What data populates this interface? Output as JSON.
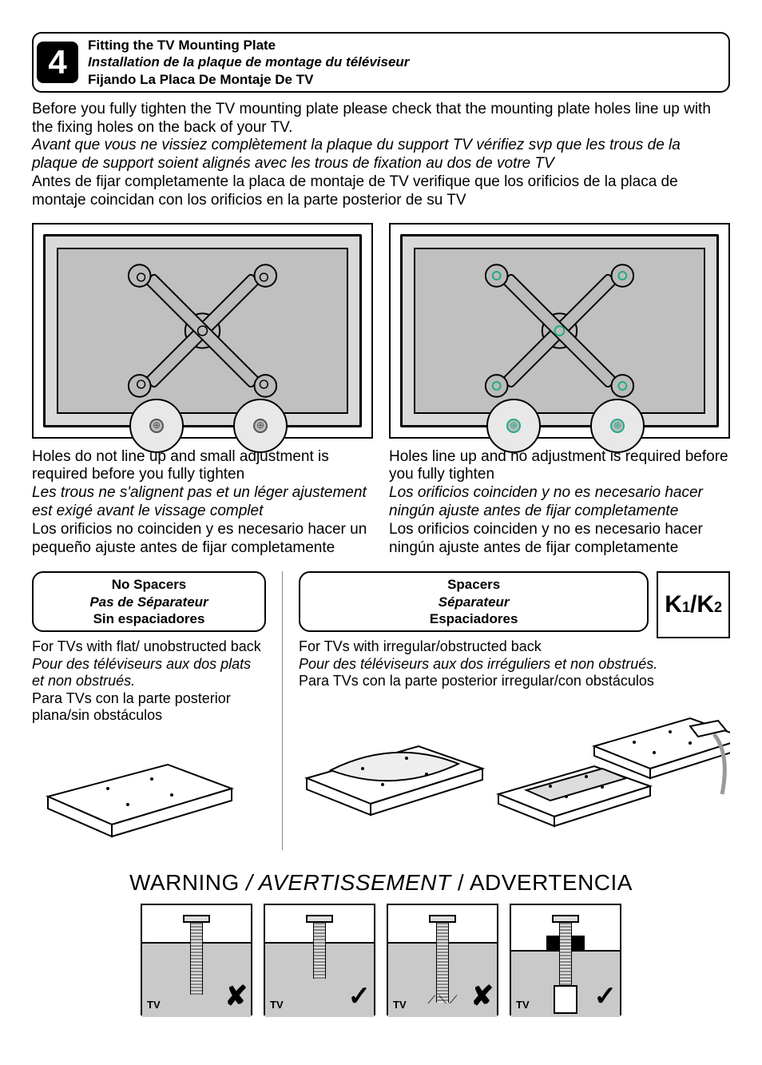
{
  "step": {
    "number": "4",
    "title_en": "Fitting the TV Mounting Plate",
    "title_fr": "Installation de la plaque de montage du téléviseur",
    "title_es": "Fijando La Placa De Montaje De TV"
  },
  "intro": {
    "en": "Before you fully tighten the TV mounting plate please check that the mounting plate holes line up with the fixing holes on the back of your TV.",
    "fr": "Avant que vous ne vissiez complètement la plaque du support TV vérifiez svp que les trous de la plaque de support soient alignés avec les trous de fixation au dos de votre TV",
    "es": "Antes de fijar completamente la placa de montaje de TV verifique que los orificios de la placa de montaje coincidan con los orificios en la parte posterior de su TV"
  },
  "left_caption": {
    "en": "Holes do not line up and small adjustment is required before you fully tighten",
    "fr": "Les trous ne s'alignent pas et un léger ajustement est exigé avant le vissage complet",
    "es": "Los orificios no coinciden y es necesario hacer un pequeño ajuste antes de fijar completamente"
  },
  "right_caption": {
    "en": "Holes line up and no adjustment is required before you fully tighten",
    "fr": "Los orificios coinciden y no es necesario hacer ningún ajuste antes de fijar completamente",
    "es": "Los orificios coinciden y no es necesario hacer ningún ajuste antes de fijar completamente"
  },
  "no_spacers": {
    "title_en": "No Spacers",
    "title_fr": "Pas de Séparateur",
    "title_es": "Sin espaciadores",
    "text_en": "For TVs with flat/ unobstructed back",
    "text_fr": "Pour des téléviseurs aux dos plats et non obstrués.",
    "text_es": "Para TVs con la parte posterior plana/sin obstáculos"
  },
  "spacers": {
    "title_en": "Spacers",
    "title_fr": "Séparateur",
    "title_es": "Espaciadores",
    "label": "K1/K2",
    "text_en": "For TVs with irregular/obstructed back",
    "text_fr": "Pour des téléviseurs aux dos irréguliers et non obstrués.",
    "text_es": "Para TVs con la parte posterior irregular/con obstáculos"
  },
  "warning": {
    "en": "WARNING",
    "fr": "AVERTISSEMENT",
    "es": "ADVERTENCIA",
    "sep1": " / ",
    "sep2": " / ",
    "tv_label": "TV",
    "boxes": [
      {
        "bolt_length": 90,
        "ok": false,
        "cavity": false,
        "spacer": false,
        "crack": false
      },
      {
        "bolt_length": 70,
        "ok": true,
        "cavity": false,
        "spacer": false,
        "crack": false
      },
      {
        "bolt_length": 100,
        "ok": false,
        "cavity": false,
        "spacer": false,
        "crack": true
      },
      {
        "bolt_length": 84,
        "ok": true,
        "cavity": true,
        "spacer": true,
        "crack": false
      }
    ]
  },
  "colors": {
    "tv_back": "#d9d9d9",
    "tv_inner": "#c0c0c0",
    "slab": "#c9c9c9"
  }
}
